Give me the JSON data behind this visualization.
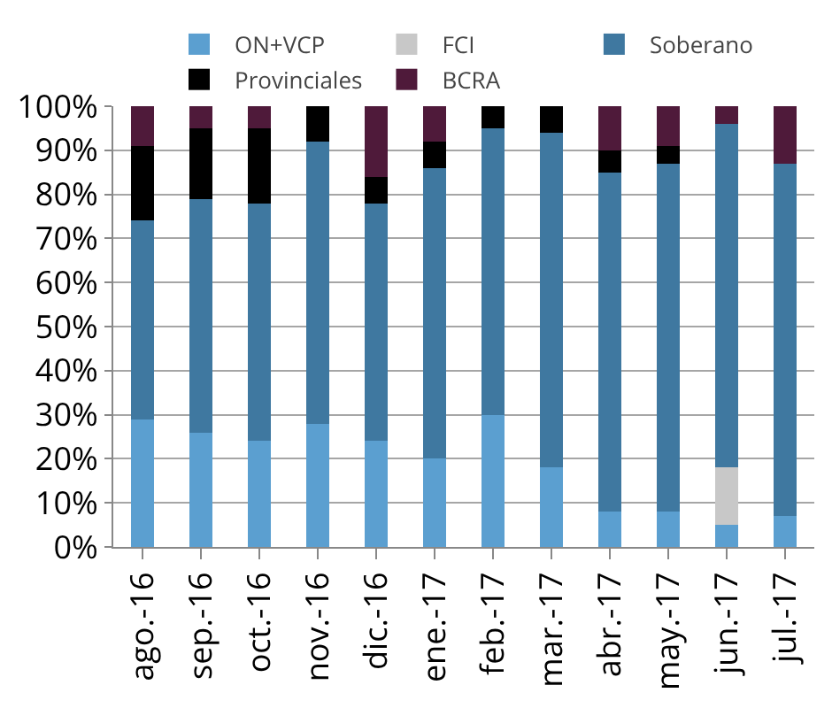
{
  "chart_data": {
    "type": "bar",
    "stacked": true,
    "categories": [
      "ago.-16",
      "sep.-16",
      "oct.-16",
      "nov.-16",
      "dic.-16",
      "ene.-17",
      "feb.-17",
      "mar.-17",
      "abr.-17",
      "may.-17",
      "jun.-17",
      "jul.-17"
    ],
    "series": [
      {
        "name": "ON+VCP",
        "color": "#5b9fd0",
        "values": [
          29,
          26,
          24,
          28,
          24,
          20,
          30,
          18,
          8,
          8,
          5,
          7
        ]
      },
      {
        "name": "FCI",
        "color": "#c8c8c8",
        "values": [
          0,
          0,
          0,
          0,
          0,
          0,
          0,
          0,
          0,
          0,
          13,
          0
        ]
      },
      {
        "name": "Soberano",
        "color": "#3f78a0",
        "values": [
          45,
          53,
          54,
          64,
          54,
          66,
          65,
          76,
          77,
          79,
          78,
          80
        ]
      },
      {
        "name": "Provinciales",
        "color": "#000000",
        "values": [
          17,
          16,
          17,
          8,
          6,
          6,
          5,
          6,
          5,
          4,
          0,
          0
        ]
      },
      {
        "name": "BCRA",
        "color": "#4f1a3a",
        "values": [
          9,
          5,
          5,
          0,
          16,
          8,
          0,
          0,
          10,
          9,
          4,
          13
        ]
      }
    ],
    "ylim": [
      0,
      100
    ],
    "yticks": [
      {
        "value": 0,
        "label": "0%"
      },
      {
        "value": 10,
        "label": "10%"
      },
      {
        "value": 20,
        "label": "20%"
      },
      {
        "value": 30,
        "label": "30%"
      },
      {
        "value": 40,
        "label": "40%"
      },
      {
        "value": 50,
        "label": "50%"
      },
      {
        "value": 60,
        "label": "60%"
      },
      {
        "value": 70,
        "label": "70%"
      },
      {
        "value": 80,
        "label": "80%"
      },
      {
        "value": 90,
        "label": "90%"
      },
      {
        "value": 100,
        "label": "100%"
      }
    ],
    "grid": "y",
    "legend": "top"
  }
}
